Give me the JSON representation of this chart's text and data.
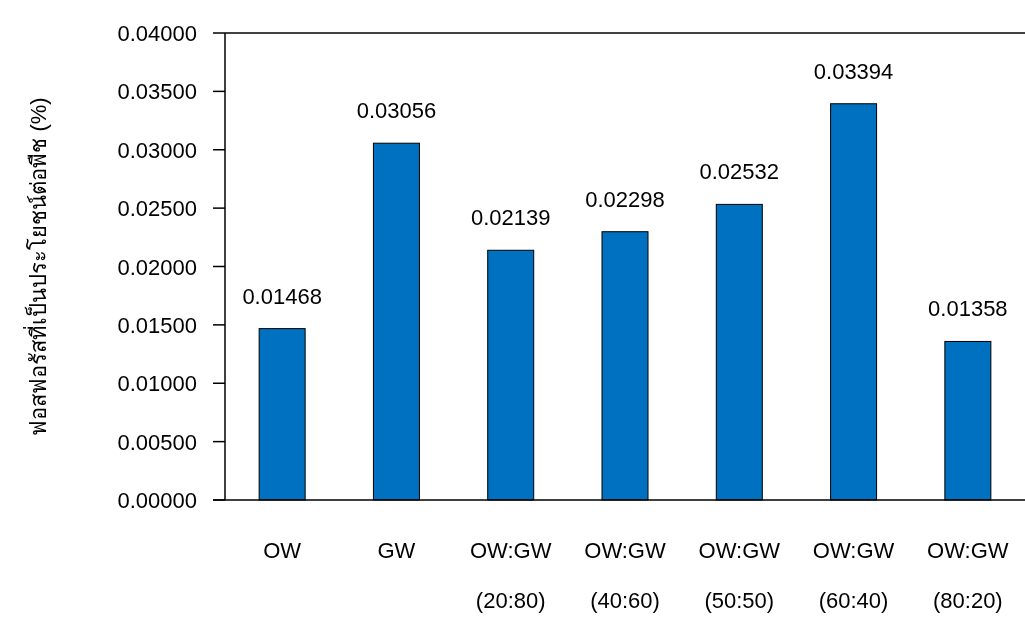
{
  "chart_data": {
    "type": "bar",
    "ylabel": "ฟอสฟอรัสที่เป็นประโยชน์ต่อพืช (%)",
    "categories": [
      "OW",
      "GW",
      "OW:GW (20:80)",
      "OW:GW (40:60)",
      "OW:GW (50:50)",
      "OW:GW (60:40)",
      "OW:GW (80:20)"
    ],
    "values": [
      0.01468,
      0.03056,
      0.02139,
      0.02298,
      0.02532,
      0.03394,
      0.01358
    ],
    "color": "#0070c0",
    "ylim": [
      0,
      0.04
    ],
    "yticks": [
      {
        "value": 0,
        "label": "0.00000"
      },
      {
        "value": 0.005,
        "label": "0.00500"
      },
      {
        "value": 0.01,
        "label": "0.01000"
      },
      {
        "value": 0.015,
        "label": "0.01500"
      },
      {
        "value": 0.02,
        "label": "0.02000"
      },
      {
        "value": 0.025,
        "label": "0.02500"
      },
      {
        "value": 0.03,
        "label": "0.03000"
      },
      {
        "value": 0.035,
        "label": "0.03500"
      },
      {
        "value": 0.04,
        "label": "0.04000"
      }
    ],
    "data_labels": true
  }
}
